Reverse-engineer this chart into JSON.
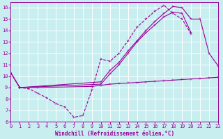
{
  "bg_color": "#c8eef0",
  "grid_color": "#ffffff",
  "line_color": "#990099",
  "xlabel": "Windchill (Refroidissement éolien,°C)",
  "xlim": [
    0,
    23
  ],
  "ylim": [
    6,
    16.5
  ],
  "xticks": [
    0,
    1,
    2,
    3,
    4,
    5,
    6,
    7,
    8,
    9,
    10,
    11,
    12,
    13,
    14,
    15,
    16,
    17,
    18,
    19,
    20,
    21,
    22,
    23
  ],
  "yticks": [
    6,
    7,
    8,
    9,
    10,
    11,
    12,
    13,
    14,
    15,
    16
  ],
  "line1_x": [
    0,
    1,
    2,
    3,
    4,
    5,
    6,
    7,
    8,
    9,
    10,
    11,
    12,
    13,
    14,
    15,
    16,
    17,
    18,
    19,
    20
  ],
  "line1_y": [
    10.3,
    9.0,
    8.9,
    8.5,
    8.1,
    7.6,
    7.3,
    6.4,
    6.55,
    8.8,
    11.5,
    11.3,
    12.0,
    13.1,
    14.3,
    15.0,
    15.7,
    16.2,
    15.5,
    15.0,
    13.7
  ],
  "line2_x": [
    0,
    1,
    10,
    11,
    12,
    13,
    14,
    15,
    16,
    17,
    18,
    19,
    20,
    21,
    22,
    23
  ],
  "line2_y": [
    10.3,
    9.0,
    9.5,
    10.5,
    11.2,
    12.2,
    13.1,
    14.0,
    14.8,
    15.5,
    16.1,
    16.0,
    15.0,
    15.0,
    12.0,
    10.9
  ],
  "line3_x": [
    0,
    1,
    10,
    11,
    12,
    13,
    14,
    15,
    16,
    17,
    18,
    19,
    20
  ],
  "line3_y": [
    10.3,
    9.0,
    9.3,
    10.2,
    11.0,
    12.0,
    13.0,
    13.8,
    14.5,
    15.2,
    15.6,
    15.5,
    13.8
  ],
  "line4_x": [
    1,
    3,
    9,
    10,
    11,
    12,
    13,
    14,
    15,
    16,
    17,
    18,
    19,
    20,
    21,
    22,
    23
  ],
  "line4_y": [
    9.0,
    9.0,
    9.1,
    9.2,
    9.3,
    9.35,
    9.4,
    9.45,
    9.5,
    9.55,
    9.6,
    9.65,
    9.7,
    9.75,
    9.8,
    9.85,
    9.9
  ]
}
